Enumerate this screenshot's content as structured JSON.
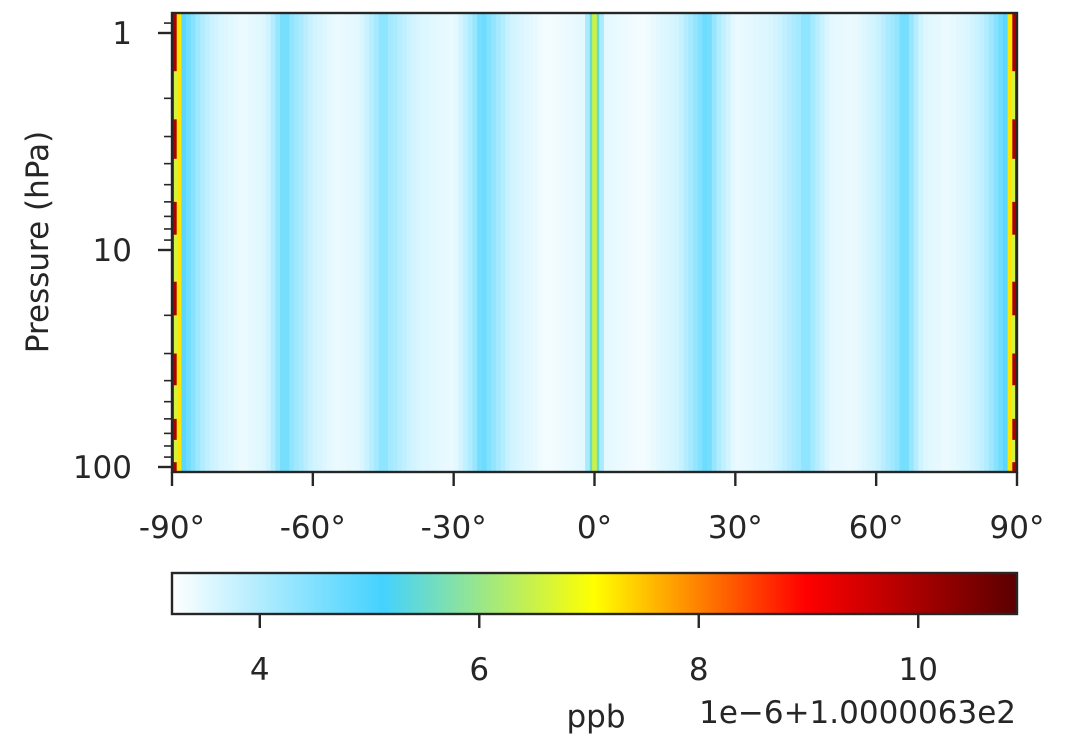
{
  "chart_data": {
    "type": "heatmap",
    "title": "",
    "xlabel": "",
    "ylabel": "Pressure (hPa)",
    "x_range": [
      -90,
      90
    ],
    "y_range": [
      100,
      1
    ],
    "y_scale": "log",
    "x_ticks": [
      "-90°",
      "-60°",
      "-30°",
      "0°",
      "30°",
      "60°",
      "90°"
    ],
    "x_tick_values": [
      -90,
      -60,
      -30,
      0,
      30,
      60,
      90
    ],
    "y_ticks": [
      "1",
      "10",
      "100"
    ],
    "y_tick_values": [
      1,
      10,
      100
    ],
    "colormap": [
      "#ffffff",
      "#44d2fe",
      "#ffff00",
      "#ff0000",
      "#5a0000"
    ],
    "colorbar": {
      "label": "ppb",
      "offset_text": "1e−6+1.0000063e2",
      "range": [
        3.2,
        10.9
      ],
      "ticks": [
        "4",
        "6",
        "8",
        "10"
      ],
      "tick_values": [
        4,
        6,
        8,
        10
      ]
    },
    "latitude_profile": [
      [
        -90,
        10.5
      ],
      [
        -89,
        9.5
      ],
      [
        -88,
        5.0
      ],
      [
        -87,
        4.8
      ],
      [
        -85,
        4.3
      ],
      [
        -83,
        3.9
      ],
      [
        -80,
        3.6
      ],
      [
        -75,
        3.4
      ],
      [
        -70,
        3.55
      ],
      [
        -67,
        4.4
      ],
      [
        -66,
        4.8
      ],
      [
        -65,
        4.4
      ],
      [
        -60,
        3.7
      ],
      [
        -55,
        3.4
      ],
      [
        -50,
        3.5
      ],
      [
        -46,
        4.2
      ],
      [
        -45,
        4.5
      ],
      [
        -44,
        4.2
      ],
      [
        -38,
        3.6
      ],
      [
        -30,
        3.4
      ],
      [
        -26,
        4.1
      ],
      [
        -24,
        4.8
      ],
      [
        -22,
        4.4
      ],
      [
        -18,
        3.7
      ],
      [
        -10,
        3.3
      ],
      [
        -2,
        3.5
      ],
      [
        -0.8,
        4.9
      ],
      [
        0,
        6.5
      ],
      [
        0.8,
        4.9
      ],
      [
        2,
        3.5
      ],
      [
        10,
        3.3
      ],
      [
        18,
        3.7
      ],
      [
        22,
        4.4
      ],
      [
        24,
        4.8
      ],
      [
        26,
        4.1
      ],
      [
        30,
        3.4
      ],
      [
        38,
        3.6
      ],
      [
        44,
        4.2
      ],
      [
        45,
        4.5
      ],
      [
        46,
        4.2
      ],
      [
        50,
        3.5
      ],
      [
        55,
        3.4
      ],
      [
        60,
        3.7
      ],
      [
        65,
        4.4
      ],
      [
        66,
        4.8
      ],
      [
        67,
        4.4
      ],
      [
        70,
        3.55
      ],
      [
        75,
        3.4
      ],
      [
        80,
        3.6
      ],
      [
        83,
        3.9
      ],
      [
        85,
        4.3
      ],
      [
        87,
        4.8
      ],
      [
        88,
        5.0
      ],
      [
        89,
        9.5
      ],
      [
        90,
        10.5
      ]
    ],
    "pole_segments_value": 6.6,
    "pole_segments_pressure_hPa": [
      [
        1.5,
        2.5
      ],
      [
        3.8,
        6.0
      ],
      [
        8.5,
        14.0
      ],
      [
        20.0,
        30.0
      ],
      [
        42.0,
        60.0
      ],
      [
        75.0,
        95.0
      ]
    ]
  }
}
